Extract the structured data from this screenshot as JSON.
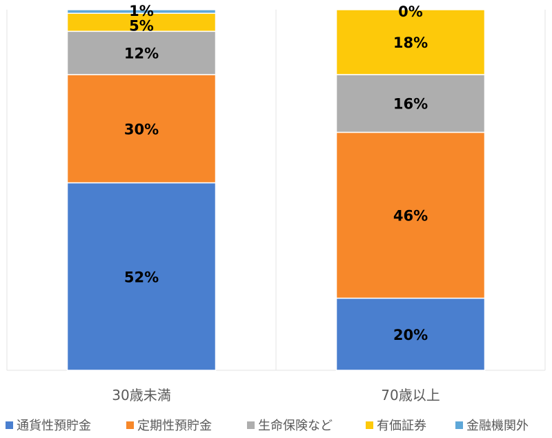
{
  "chart_data": {
    "type": "bar",
    "stacked": true,
    "percent": true,
    "categories": [
      "30歳未満",
      "70歳以上"
    ],
    "series": [
      {
        "name": "通貨性預貯金",
        "color": "#4a7fcf",
        "values": [
          52,
          20
        ]
      },
      {
        "name": "定期性預貯金",
        "color": "#f7882a",
        "values": [
          30,
          46
        ]
      },
      {
        "name": "生命保険など",
        "color": "#aeaeae",
        "values": [
          12,
          16
        ]
      },
      {
        "name": "有価証券",
        "color": "#fdc90a",
        "values": [
          5,
          18
        ]
      },
      {
        "name": "金融機関外",
        "color": "#5ea7d8",
        "values": [
          1,
          0
        ]
      }
    ],
    "data_label_suffix": "%",
    "ylim": [
      0,
      100
    ],
    "legend": "bottom",
    "grid": "vertical category separators"
  }
}
